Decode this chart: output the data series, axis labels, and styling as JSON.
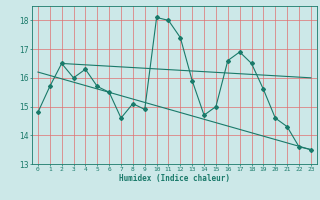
{
  "line1_x": [
    0,
    1,
    2,
    3,
    4,
    5,
    6,
    7,
    8,
    9,
    10,
    11,
    12,
    13,
    14,
    15,
    16,
    17,
    18,
    19,
    20,
    21,
    22,
    23
  ],
  "line1_y": [
    14.8,
    15.7,
    16.5,
    16.0,
    16.3,
    15.7,
    15.5,
    14.6,
    15.1,
    14.9,
    18.1,
    18.0,
    17.4,
    15.9,
    14.7,
    15.0,
    16.6,
    16.9,
    16.5,
    15.6,
    14.6,
    14.3,
    13.6,
    13.5
  ],
  "line2_x": [
    2,
    23
  ],
  "line2_y": [
    16.5,
    16.0
  ],
  "line3_x": [
    0,
    23
  ],
  "line3_y": [
    16.2,
    13.5
  ],
  "color": "#1a7a6a",
  "bg_color": "#cce8e8",
  "grid_color": "#e07070",
  "xlabel": "Humidex (Indice chaleur)",
  "ylim": [
    13,
    18.5
  ],
  "xlim": [
    -0.5,
    23.5
  ],
  "yticks": [
    13,
    14,
    15,
    16,
    17,
    18
  ],
  "xticks": [
    0,
    1,
    2,
    3,
    4,
    5,
    6,
    7,
    8,
    9,
    10,
    11,
    12,
    13,
    14,
    15,
    16,
    17,
    18,
    19,
    20,
    21,
    22,
    23
  ],
  "marker": "D",
  "markersize": 2.0,
  "linewidth": 0.8
}
